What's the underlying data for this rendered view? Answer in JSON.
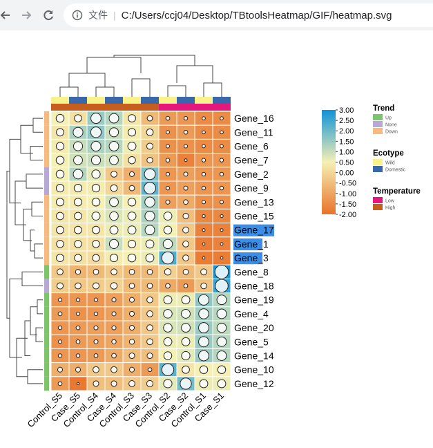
{
  "browser": {
    "file_label": "文件",
    "url": "C:/Users/ccj04/Desktop/TBtoolsHeatmap/GIF/heatmap.svg"
  },
  "chart_data": {
    "type": "heatmap",
    "title": "",
    "columns": [
      "Control_S5",
      "Case_S5",
      "Control_S4",
      "Case_S4",
      "Control_S3",
      "Case_S3",
      "Control_S2",
      "Case_S2",
      "Control_S1",
      "Case_S1"
    ],
    "rows": [
      "Gene_16",
      "Gene_11",
      "Gene_6",
      "Gene_7",
      "Gene_2",
      "Gene_9",
      "Gene_13",
      "Gene_15",
      "Gene_17",
      "Gene_1",
      "Gene_3",
      "Gene_8",
      "Gene_18",
      "Gene_19",
      "Gene_4",
      "Gene_20",
      "Gene_5",
      "Gene_14",
      "Gene_10",
      "Gene_12"
    ],
    "highlighted_rows": [
      "Gene_17",
      "Gene_1",
      "Gene_3"
    ],
    "values": [
      [
        0.5,
        0.2,
        1.5,
        1.2,
        0.3,
        -0.6,
        -1.2,
        -1.3,
        -1.5,
        -1.5
      ],
      [
        0.3,
        1.3,
        1.6,
        1.0,
        0.4,
        0.0,
        -1.4,
        -1.2,
        -1.5,
        -1.5
      ],
      [
        0.4,
        1.0,
        1.3,
        1.2,
        0.6,
        -0.2,
        -1.4,
        -1.4,
        -1.5,
        -1.5
      ],
      [
        0.5,
        0.9,
        1.0,
        0.9,
        0.2,
        -0.4,
        -1.2,
        -1.7,
        -1.3,
        -1.3
      ],
      [
        0.5,
        1.2,
        0.7,
        -0.3,
        -0.8,
        1.8,
        -1.3,
        -1.1,
        -1.3,
        -1.3
      ],
      [
        0.4,
        0.4,
        0.4,
        0.0,
        -0.6,
        2.1,
        -1.3,
        -1.1,
        -1.3,
        -1.3
      ],
      [
        0.4,
        0.4,
        0.5,
        0.9,
        0.5,
        1.4,
        -1.1,
        -0.9,
        -1.4,
        -1.4
      ],
      [
        0.3,
        0.3,
        0.6,
        0.8,
        0.6,
        1.3,
        0.6,
        -0.5,
        -1.6,
        -1.6
      ],
      [
        0.3,
        0.3,
        0.3,
        0.6,
        0.6,
        1.2,
        0.5,
        -0.3,
        -1.7,
        -1.7
      ],
      [
        0.2,
        0.2,
        0.2,
        1.0,
        0.4,
        0.6,
        1.1,
        -0.3,
        -1.8,
        -1.7
      ],
      [
        0.3,
        0.2,
        0.1,
        0.4,
        0.5,
        0.6,
        2.3,
        -0.3,
        -1.8,
        -1.8
      ],
      [
        -0.3,
        -0.7,
        -0.6,
        -0.3,
        -0.6,
        -0.6,
        -0.1,
        -0.6,
        -0.3,
        2.9
      ],
      [
        -0.2,
        -0.3,
        -0.2,
        -0.1,
        -0.6,
        -0.6,
        -0.9,
        -1.2,
        -0.4,
        2.6
      ],
      [
        -1.3,
        -1.3,
        -1.3,
        -1.1,
        -0.8,
        -0.3,
        0.6,
        0.6,
        1.6,
        1.2
      ],
      [
        -1.2,
        -1.4,
        -1.3,
        -1.1,
        -0.8,
        -0.3,
        0.8,
        0.9,
        1.4,
        1.2
      ],
      [
        -1.3,
        -1.2,
        -1.1,
        -1.1,
        -0.8,
        -0.3,
        0.8,
        0.9,
        1.5,
        1.1
      ],
      [
        -1.4,
        -1.2,
        -1.1,
        -1.0,
        -0.7,
        -0.3,
        0.6,
        0.6,
        1.5,
        1.2
      ],
      [
        -1.3,
        -1.3,
        -1.2,
        -0.9,
        -0.5,
        -0.5,
        0.5,
        0.7,
        1.5,
        1.2
      ],
      [
        -0.8,
        -0.8,
        -0.3,
        -0.3,
        -0.8,
        -1.2,
        2.2,
        0.3,
        0.5,
        0.5
      ],
      [
        -1.2,
        -1.9,
        -0.5,
        -0.5,
        -0.3,
        -0.2,
        0.7,
        1.9,
        0.6,
        0.6
      ]
    ],
    "color_scale": {
      "min": -2.0,
      "max": 3.0,
      "stops": [
        [
          "-2.0",
          "#e8732a"
        ],
        [
          "0.5",
          "#f5f0b4"
        ],
        [
          "3.0",
          "#0f93d8"
        ]
      ]
    },
    "colorbar_ticks": [
      "3.00",
      "2.50",
      "2.00",
      "1.50",
      "1.00",
      "0.50",
      "0.00",
      "-0.50",
      "-1.00",
      "-1.50",
      "-2.00"
    ],
    "column_annotations": {
      "Ecotype": [
        "Wild",
        "Domestic",
        "Wild",
        "Domestic",
        "Wild",
        "Domestic",
        "Wild",
        "Domestic",
        "Wild",
        "Domestic"
      ],
      "Temperature": [
        "High",
        "High",
        "High",
        "High",
        "High",
        "High",
        "Low",
        "Low",
        "Low",
        "Low"
      ]
    },
    "row_annotation": {
      "Trend": [
        "Down",
        "Down",
        "Down",
        "Down",
        "None",
        "None",
        "Down",
        "Down",
        "Down",
        "Down",
        "Down",
        "Up",
        "None",
        "Up",
        "Up",
        "Up",
        "Up",
        "Up",
        "Up",
        "Up"
      ]
    },
    "legends": [
      {
        "title": "Trend",
        "items": [
          {
            "label": "Up",
            "color": "#7dc46c"
          },
          {
            "label": "None",
            "color": "#b8a8d4"
          },
          {
            "label": "Down",
            "color": "#f7b97f"
          }
        ]
      },
      {
        "title": "Ecotype",
        "items": [
          {
            "label": "Wild",
            "color": "#f8f28c"
          },
          {
            "label": "Domestic",
            "color": "#3a66aa"
          }
        ]
      },
      {
        "title": "Temperature",
        "items": [
          {
            "label": "Low",
            "color": "#e5177a"
          },
          {
            "label": "High",
            "color": "#c65f1e"
          }
        ]
      }
    ]
  }
}
